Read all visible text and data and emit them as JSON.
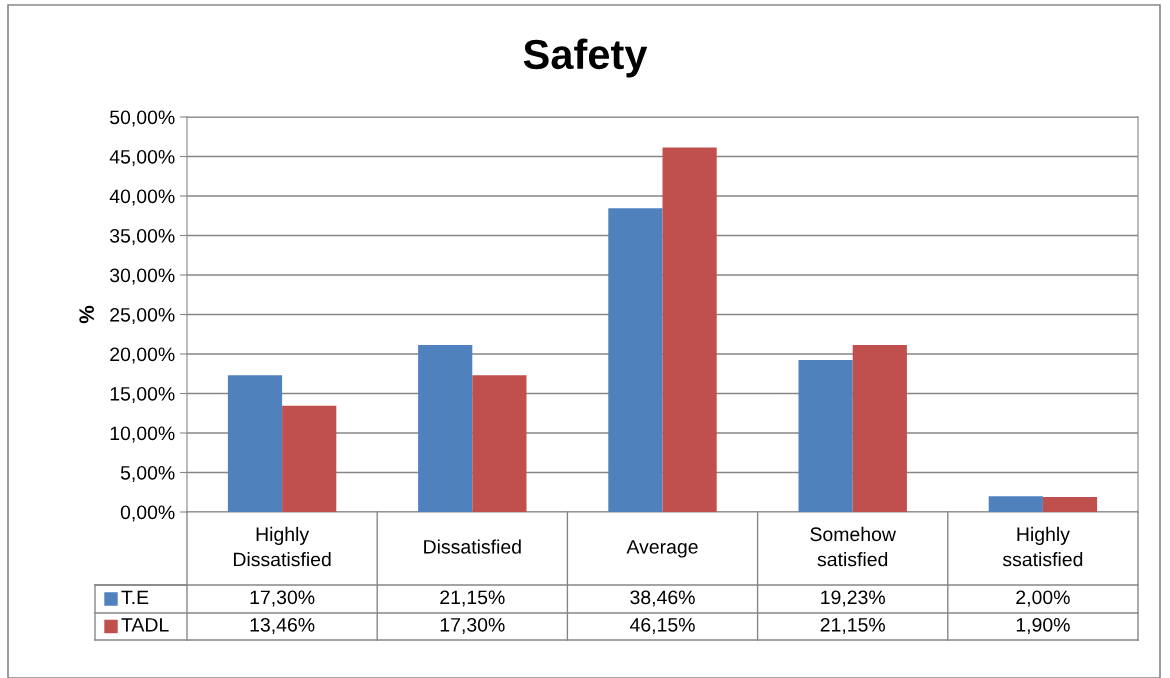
{
  "chart_data": {
    "type": "bar",
    "title": "Safety",
    "ylabel": "%",
    "categories": [
      "Highly Dissatisfied",
      "Dissatisfied",
      "Average",
      "Somehow satisfied",
      "Highly ssatisfied"
    ],
    "series": [
      {
        "name": "T.E",
        "color": "#4f81bd",
        "values": [
          17.3,
          21.15,
          38.46,
          19.23,
          2.0
        ],
        "value_labels": [
          "17,30%",
          "21,15%",
          "38,46%",
          "19,23%",
          "2,00%"
        ]
      },
      {
        "name": "TADL",
        "color": "#c0504d",
        "values": [
          13.46,
          17.3,
          46.15,
          21.15,
          1.9
        ],
        "value_labels": [
          "13,46%",
          "17,30%",
          "46,15%",
          "21,15%",
          "1,90%"
        ]
      }
    ],
    "ylim": [
      0,
      50
    ],
    "yticks": [
      {
        "value": 0,
        "label": "0,00%"
      },
      {
        "value": 5,
        "label": "5,00%"
      },
      {
        "value": 10,
        "label": "10,00%"
      },
      {
        "value": 15,
        "label": "15,00%"
      },
      {
        "value": 20,
        "label": "20,00%"
      },
      {
        "value": 25,
        "label": "25,00%"
      },
      {
        "value": 30,
        "label": "30,00%"
      },
      {
        "value": 35,
        "label": "35,00%"
      },
      {
        "value": 40,
        "label": "40,00%"
      },
      {
        "value": 45,
        "label": "45,00%"
      },
      {
        "value": 50,
        "label": "50,00%"
      }
    ],
    "grid": "y",
    "legend": "bottom"
  }
}
